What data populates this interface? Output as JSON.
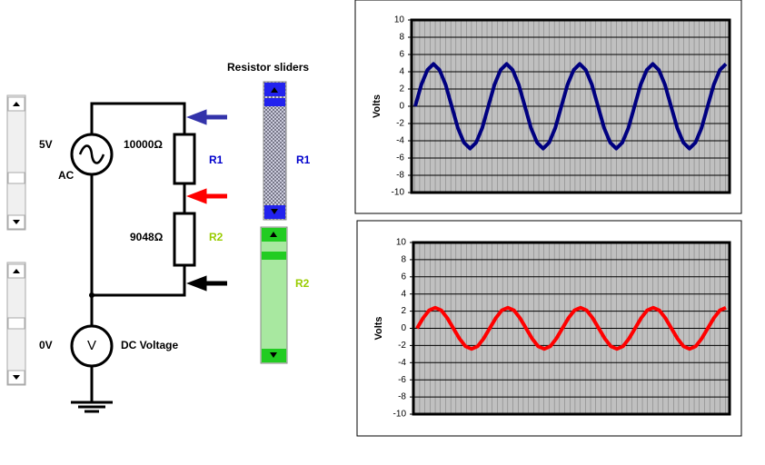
{
  "chart_data": [
    {
      "type": "line",
      "y_label": "Volts",
      "ylim": [
        -10,
        10
      ],
      "yticks": [
        -10,
        -8,
        -6,
        -4,
        -2,
        0,
        2,
        4,
        6,
        8,
        10
      ],
      "grid": true,
      "series": [
        {
          "color": "#000080",
          "values": [
            0,
            2.5,
            4.2,
            4.9,
            4.2,
            2.5,
            0,
            -2.5,
            -4.2,
            -4.9,
            -4.2,
            -2.5,
            0,
            2.5,
            4.2,
            4.9,
            4.2,
            2.5,
            0,
            -2.5,
            -4.2,
            -4.9,
            -4.2,
            -2.5,
            0,
            2.5,
            4.2,
            4.9,
            4.2,
            2.5,
            0,
            -2.5,
            -4.2,
            -4.9,
            -4.2,
            -2.5,
            0,
            2.5,
            4.2,
            4.9,
            4.2,
            2.5,
            0,
            -2.5,
            -4.2,
            -4.9,
            -4.2,
            -2.5,
            0,
            2.5,
            4.2,
            4.9
          ]
        }
      ]
    },
    {
      "type": "line",
      "y_label": "Volts",
      "ylim": [
        -10,
        10
      ],
      "yticks": [
        -10,
        -8,
        -6,
        -4,
        -2,
        0,
        2,
        4,
        6,
        8,
        10
      ],
      "grid": true,
      "series": [
        {
          "color": "#ff0000",
          "values": [
            0,
            1.2,
            2.1,
            2.4,
            2.1,
            1.2,
            0,
            -1.2,
            -2.1,
            -2.4,
            -2.1,
            -1.2,
            0,
            1.2,
            2.1,
            2.4,
            2.1,
            1.2,
            0,
            -1.2,
            -2.1,
            -2.4,
            -2.1,
            -1.2,
            0,
            1.2,
            2.1,
            2.4,
            2.1,
            1.2,
            0,
            -1.2,
            -2.1,
            -2.4,
            -2.1,
            -1.2,
            0,
            1.2,
            2.1,
            2.4,
            2.1,
            1.2,
            0,
            -1.2,
            -2.1,
            -2.4,
            -2.1,
            -1.2,
            0,
            1.2,
            2.1,
            2.4
          ]
        }
      ]
    }
  ],
  "circuit": {
    "source_voltage": "5V",
    "source_type": "AC",
    "r1_value": "10000Ω",
    "r1_label": "R1",
    "r2_value": "9048Ω",
    "r2_label": "R2",
    "meter_reading": "0V",
    "meter_symbol": "V",
    "meter_label": "DC Voltage"
  },
  "sliders": {
    "title": "Resistor sliders",
    "r1_label": "R1",
    "r2_label": "R2"
  }
}
